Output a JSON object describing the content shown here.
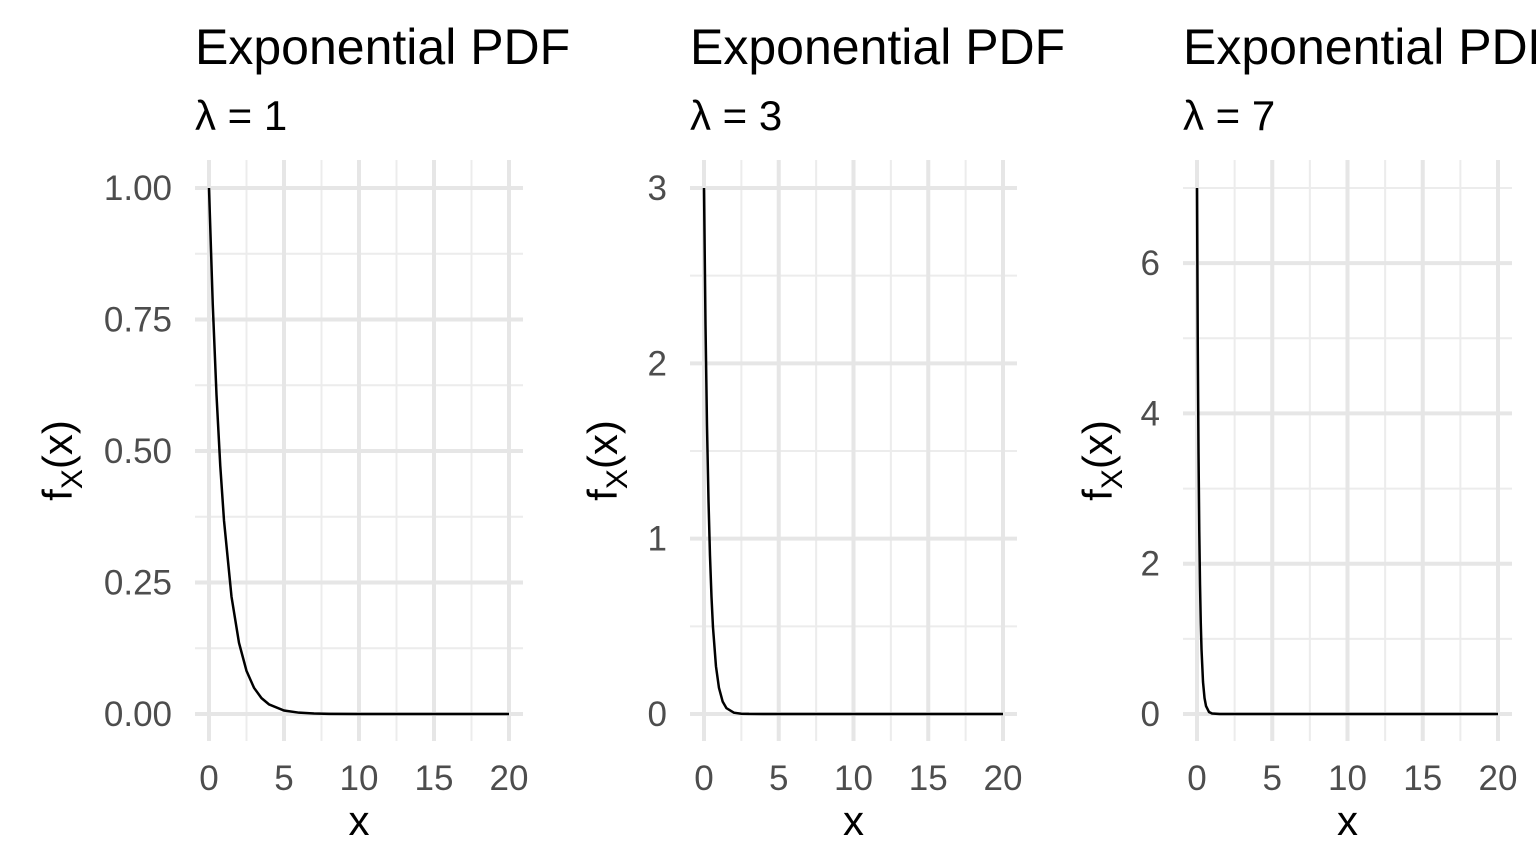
{
  "chart_data": [
    {
      "type": "line",
      "title": "Exponential PDF",
      "subtitle": "λ = 1",
      "lambda": 1,
      "xlabel": "x",
      "ylabel": "f_X(x)",
      "ylabel_main": "f",
      "ylabel_sub": "X",
      "ylabel_tail": "(x)",
      "xlim": [
        0,
        20
      ],
      "ylim": [
        0,
        1
      ],
      "xticks": [
        0,
        5,
        10,
        15,
        20
      ],
      "xtick_labels": [
        "0",
        "5",
        "10",
        "15",
        "20"
      ],
      "yticks": [
        0,
        0.25,
        0.5,
        0.75,
        1
      ],
      "ytick_labels": [
        "0.00",
        "0.25",
        "0.50",
        "0.75",
        "1.00"
      ],
      "grid": true,
      "series": [
        {
          "x": [
            0,
            0.25,
            0.5,
            0.75,
            1,
            1.5,
            2,
            2.5,
            3,
            3.5,
            4,
            5,
            6,
            7,
            8,
            10,
            12,
            15,
            20
          ],
          "y": [
            1,
            0.7788,
            0.6065,
            0.4724,
            0.3679,
            0.2231,
            0.1353,
            0.0821,
            0.0498,
            0.0302,
            0.0183,
            0.0067,
            0.0025,
            0.0009,
            0.0003,
            0,
            0,
            0,
            0
          ]
        }
      ]
    },
    {
      "type": "line",
      "title": "Exponential PDF",
      "subtitle": "λ = 3",
      "lambda": 3,
      "xlabel": "x",
      "ylabel": "f_X(x)",
      "ylabel_main": "f",
      "ylabel_sub": "X",
      "ylabel_tail": "(x)",
      "xlim": [
        0,
        20
      ],
      "ylim": [
        0,
        3
      ],
      "xticks": [
        0,
        5,
        10,
        15,
        20
      ],
      "xtick_labels": [
        "0",
        "5",
        "10",
        "15",
        "20"
      ],
      "yticks": [
        0,
        1,
        2,
        3
      ],
      "ytick_labels": [
        "0",
        "1",
        "2",
        "3"
      ],
      "grid": true,
      "series": [
        {
          "x": [
            0,
            0.1,
            0.2,
            0.3,
            0.4,
            0.5,
            0.6,
            0.8,
            1,
            1.25,
            1.5,
            2,
            2.5,
            3,
            4,
            6,
            10,
            15,
            20
          ],
          "y": [
            3,
            2.2225,
            1.6464,
            1.2197,
            0.9036,
            0.6694,
            0.4959,
            0.2722,
            0.1494,
            0.0705,
            0.0333,
            0.0074,
            0.0017,
            0.0004,
            0,
            0,
            0,
            0,
            0
          ]
        }
      ]
    },
    {
      "type": "line",
      "title": "Exponential PDF",
      "subtitle": "λ = 7",
      "lambda": 7,
      "xlabel": "x",
      "ylabel": "f_X(x)",
      "ylabel_main": "f",
      "ylabel_sub": "X",
      "ylabel_tail": "(x)",
      "xlim": [
        0,
        20
      ],
      "ylim": [
        0,
        7
      ],
      "xticks": [
        0,
        5,
        10,
        15,
        20
      ],
      "xtick_labels": [
        "0",
        "5",
        "10",
        "15",
        "20"
      ],
      "yticks": [
        0,
        2,
        4,
        6
      ],
      "ytick_labels": [
        "0",
        "2",
        "4",
        "6"
      ],
      "grid": true,
      "series": [
        {
          "x": [
            0,
            0.05,
            0.1,
            0.15,
            0.2,
            0.25,
            0.3,
            0.4,
            0.5,
            0.6,
            0.8,
            1,
            1.5,
            2,
            4,
            10,
            20
          ],
          "y": [
            7,
            4.933,
            3.4761,
            2.4497,
            1.7263,
            1.2165,
            0.8573,
            0.4257,
            0.2114,
            0.105,
            0.0259,
            0.0064,
            0.0002,
            0,
            0,
            0,
            0
          ]
        }
      ]
    }
  ]
}
